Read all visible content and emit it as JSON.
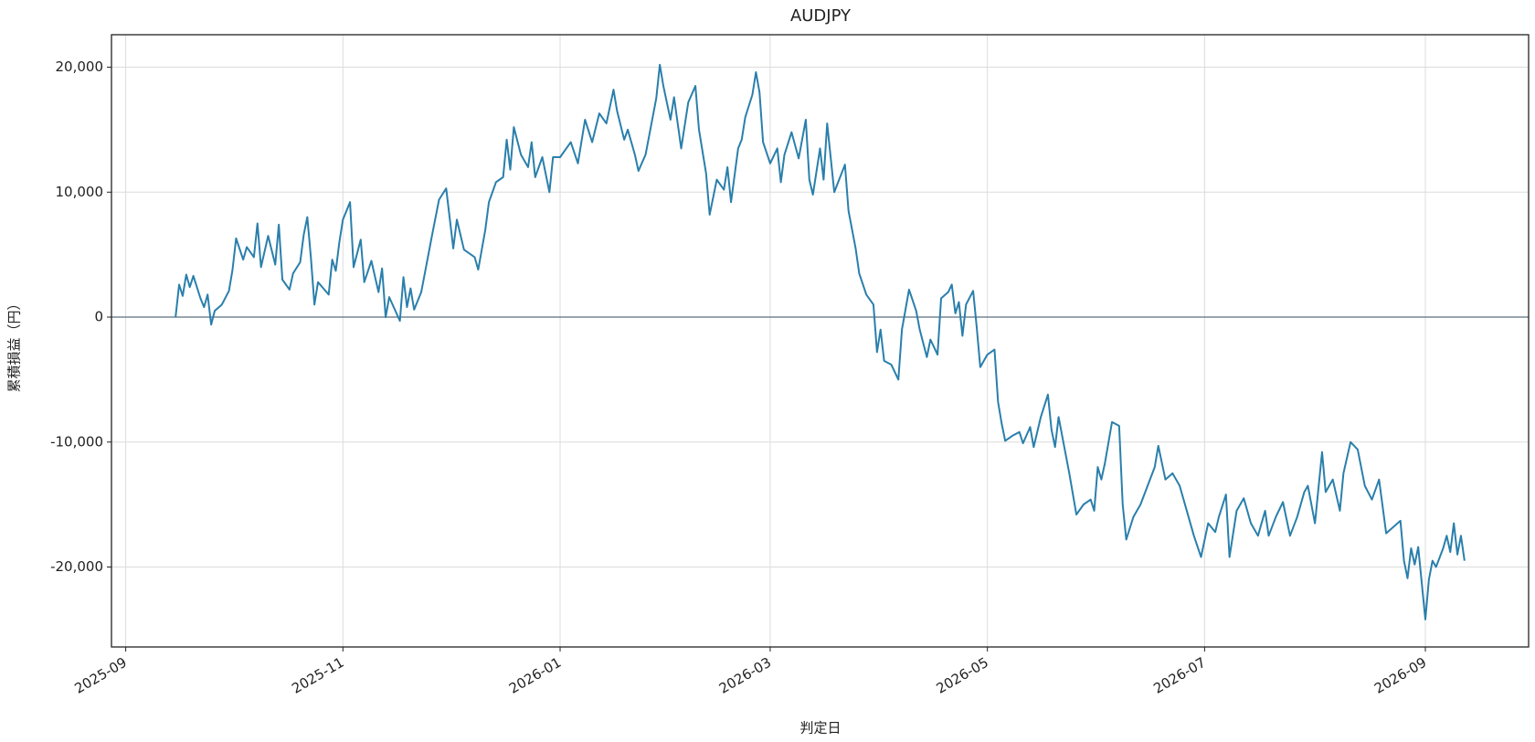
{
  "chart_data": {
    "type": "line",
    "title": "AUDJPY",
    "x_label": "判定日",
    "y_label": "累積損益（円）",
    "color": "#2a7fab",
    "grid": true,
    "axhline": 0,
    "xlim": [
      "2025-08-28",
      "2026-09-30"
    ],
    "xticks": [
      "2025-09",
      "2025-11",
      "2026-01",
      "2026-03",
      "2026-05",
      "2026-07",
      "2026-09"
    ],
    "ylim": [
      -26400,
      22600
    ],
    "yticks": [
      {
        "value": -20000,
        "label": "-20,000"
      },
      {
        "value": -10000,
        "label": "-10,000"
      },
      0,
      {
        "value": 10000,
        "label": "10,000"
      },
      {
        "value": 20000,
        "label": "20,000"
      }
    ],
    "x": [
      "2025-09-15",
      "2025-09-16",
      "2025-09-17",
      "2025-09-18",
      "2025-09-19",
      "2025-09-20",
      "2025-09-22",
      "2025-09-23",
      "2025-09-24",
      "2025-09-25",
      "2025-09-26",
      "2025-09-28",
      "2025-09-30",
      "2025-10-01",
      "2025-10-02",
      "2025-10-04",
      "2025-10-05",
      "2025-10-07",
      "2025-10-08",
      "2025-10-09",
      "2025-10-11",
      "2025-10-13",
      "2025-10-14",
      "2025-10-15",
      "2025-10-17",
      "2025-10-18",
      "2025-10-20",
      "2025-10-21",
      "2025-10-22",
      "2025-10-23",
      "2025-10-24",
      "2025-10-25",
      "2025-10-28",
      "2025-10-29",
      "2025-10-30",
      "2025-10-31",
      "2025-11-01",
      "2025-11-03",
      "2025-11-04",
      "2025-11-06",
      "2025-11-07",
      "2025-11-09",
      "2025-11-11",
      "2025-11-12",
      "2025-11-13",
      "2025-11-14",
      "2025-11-17",
      "2025-11-18",
      "2025-11-19",
      "2025-11-20",
      "2025-11-21",
      "2025-11-23",
      "2025-11-26",
      "2025-11-28",
      "2025-11-30",
      "2025-12-02",
      "2025-12-03",
      "2025-12-05",
      "2025-12-08",
      "2025-12-09",
      "2025-12-11",
      "2025-12-12",
      "2025-12-14",
      "2025-12-16",
      "2025-12-17",
      "2025-12-18",
      "2025-12-19",
      "2025-12-21",
      "2025-12-23",
      "2025-12-24",
      "2025-12-25",
      "2025-12-27",
      "2025-12-29",
      "2025-12-30",
      "2026-01-01",
      "2026-01-04",
      "2026-01-06",
      "2026-01-08",
      "2026-01-10",
      "2026-01-12",
      "2026-01-14",
      "2026-01-16",
      "2026-01-17",
      "2026-01-19",
      "2026-01-20",
      "2026-01-22",
      "2026-01-23",
      "2026-01-25",
      "2026-01-27",
      "2026-01-28",
      "2026-01-29",
      "2026-01-30",
      "2026-02-01",
      "2026-02-02",
      "2026-02-04",
      "2026-02-06",
      "2026-02-08",
      "2026-02-09",
      "2026-02-11",
      "2026-02-12",
      "2026-02-14",
      "2026-02-16",
      "2026-02-17",
      "2026-02-18",
      "2026-02-20",
      "2026-02-21",
      "2026-02-22",
      "2026-02-24",
      "2026-02-25",
      "2026-02-26",
      "2026-02-27",
      "2026-03-01",
      "2026-03-03",
      "2026-03-04",
      "2026-03-05",
      "2026-03-07",
      "2026-03-09",
      "2026-03-11",
      "2026-03-12",
      "2026-03-13",
      "2026-03-15",
      "2026-03-16",
      "2026-03-17",
      "2026-03-19",
      "2026-03-22",
      "2026-03-23",
      "2026-03-25",
      "2026-03-26",
      "2026-03-28",
      "2026-03-30",
      "2026-03-31",
      "2026-04-01",
      "2026-04-02",
      "2026-04-04",
      "2026-04-06",
      "2026-04-07",
      "2026-04-09",
      "2026-04-11",
      "2026-04-12",
      "2026-04-14",
      "2026-04-15",
      "2026-04-17",
      "2026-04-18",
      "2026-04-20",
      "2026-04-21",
      "2026-04-22",
      "2026-04-23",
      "2026-04-24",
      "2026-04-25",
      "2026-04-27",
      "2026-04-28",
      "2026-04-29",
      "2026-04-30",
      "2026-05-01",
      "2026-05-03",
      "2026-05-04",
      "2026-05-05",
      "2026-05-06",
      "2026-05-08",
      "2026-05-10",
      "2026-05-11",
      "2026-05-13",
      "2026-05-14",
      "2026-05-16",
      "2026-05-18",
      "2026-05-19",
      "2026-05-20",
      "2026-05-21",
      "2026-05-23",
      "2026-05-24",
      "2026-05-26",
      "2026-05-28",
      "2026-05-30",
      "2026-05-31",
      "2026-06-01",
      "2026-06-02",
      "2026-06-03",
      "2026-06-05",
      "2026-06-07",
      "2026-06-08",
      "2026-06-09",
      "2026-06-11",
      "2026-06-13",
      "2026-06-15",
      "2026-06-17",
      "2026-06-18",
      "2026-06-20",
      "2026-06-22",
      "2026-06-24",
      "2026-06-26",
      "2026-06-28",
      "2026-06-30",
      "2026-07-02",
      "2026-07-04",
      "2026-07-05",
      "2026-07-07",
      "2026-07-08",
      "2026-07-10",
      "2026-07-12",
      "2026-07-14",
      "2026-07-16",
      "2026-07-18",
      "2026-07-19",
      "2026-07-21",
      "2026-07-23",
      "2026-07-25",
      "2026-07-27",
      "2026-07-29",
      "2026-07-30",
      "2026-08-01",
      "2026-08-03",
      "2026-08-04",
      "2026-08-06",
      "2026-08-08",
      "2026-08-09",
      "2026-08-11",
      "2026-08-13",
      "2026-08-15",
      "2026-08-17",
      "2026-08-19",
      "2026-08-21",
      "2026-08-23",
      "2026-08-25",
      "2026-08-26",
      "2026-08-27",
      "2026-08-28",
      "2026-08-29",
      "2026-08-30",
      "2026-09-01",
      "2026-09-02",
      "2026-09-03",
      "2026-09-04",
      "2026-09-06",
      "2026-09-07",
      "2026-09-08",
      "2026-09-09",
      "2026-09-10",
      "2026-09-11",
      "2026-09-12"
    ],
    "values": [
      0,
      2600,
      1700,
      3400,
      2400,
      3300,
      1500,
      800,
      1800,
      -600,
      500,
      1000,
      2100,
      3800,
      6300,
      4600,
      5600,
      4800,
      7500,
      4000,
      6500,
      4200,
      7400,
      3000,
      2200,
      3500,
      4400,
      6600,
      8000,
      4800,
      1000,
      2800,
      1800,
      4600,
      3700,
      6000,
      7800,
      9200,
      4000,
      6200,
      2800,
      4500,
      2000,
      3900,
      0,
      1600,
      -300,
      3200,
      800,
      2300,
      600,
      2000,
      6500,
      9400,
      10300,
      5500,
      7800,
      5400,
      4800,
      3800,
      7000,
      9200,
      10800,
      11200,
      14200,
      11800,
      15200,
      13000,
      12000,
      14000,
      11200,
      12800,
      10000,
      12800,
      12800,
      14000,
      12300,
      15800,
      14000,
      16300,
      15500,
      18200,
      16500,
      14200,
      15000,
      13000,
      11700,
      13000,
      16000,
      17500,
      20200,
      18500,
      15800,
      17600,
      13500,
      17200,
      18500,
      15000,
      11500,
      8200,
      11000,
      10200,
      12000,
      9200,
      13500,
      14200,
      16000,
      17800,
      19600,
      18000,
      14000,
      12300,
      13500,
      10800,
      13000,
      14800,
      12700,
      15800,
      11000,
      9800,
      13500,
      11000,
      15500,
      10000,
      12200,
      8500,
      5500,
      3500,
      1800,
      1000,
      -2800,
      -1000,
      -3500,
      -3800,
      -5000,
      -1000,
      2200,
      500,
      -1000,
      -3200,
      -1800,
      -3000,
      1500,
      2000,
      2600,
      300,
      1200,
      -1500,
      1000,
      2100,
      -800,
      -4000,
      -3500,
      -3000,
      -2600,
      -6800,
      -8500,
      -9900,
      -9500,
      -9200,
      -10100,
      -8800,
      -10400,
      -8000,
      -6200,
      -9000,
      -10400,
      -8000,
      -11000,
      -12500,
      -15800,
      -15000,
      -14600,
      -15500,
      -12000,
      -13000,
      -11700,
      -8400,
      -8700,
      -15000,
      -17800,
      -16000,
      -15000,
      -13500,
      -12000,
      -10300,
      -13000,
      -12500,
      -13500,
      -15500,
      -17500,
      -19200,
      -16500,
      -17200,
      -16000,
      -14200,
      -19200,
      -15500,
      -14500,
      -16500,
      -17500,
      -15500,
      -17500,
      -16000,
      -14800,
      -17500,
      -16000,
      -14000,
      -13500,
      -16500,
      -10800,
      -14000,
      -13000,
      -15500,
      -12500,
      -10000,
      -10600,
      -13500,
      -14600,
      -13000,
      -17300,
      -16800,
      -16300,
      -19500,
      -20900,
      -18500,
      -19800,
      -18400,
      -24200,
      -21000,
      -19500,
      -20000,
      -18500,
      -17500,
      -18800,
      -16500,
      -19000,
      -17500,
      -19500
    ]
  }
}
